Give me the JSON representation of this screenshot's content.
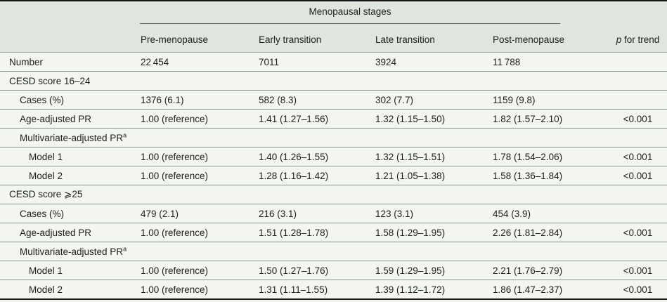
{
  "header": {
    "spanner": "Menopausal stages",
    "columns": [
      "Pre-menopause",
      "Early transition",
      "Late transition",
      "Post-menopause"
    ],
    "p_col_italic": "p",
    "p_col_rest": " for trend"
  },
  "rows": [
    {
      "label": "Number",
      "sup": "",
      "cells": [
        "22 454",
        "7011",
        "3924",
        "11 788",
        ""
      ]
    },
    {
      "label": "CESD score 16–24",
      "sup": "",
      "cells": [
        "",
        "",
        "",
        "",
        ""
      ]
    },
    {
      "label": "Cases (%)",
      "sup": "",
      "cells": [
        "1376 (6.1)",
        "582 (8.3)",
        "302 (7.7)",
        "1159 (9.8)",
        ""
      ]
    },
    {
      "label": "Age-adjusted PR",
      "sup": "",
      "cells": [
        "1.00 (reference)",
        "1.41 (1.27–1.56)",
        "1.32 (1.15–1.50)",
        "1.82 (1.57–2.10)",
        "<0.001"
      ]
    },
    {
      "label": "Multivariate-adjusted PR",
      "sup": "a",
      "cells": [
        "",
        "",
        "",
        "",
        ""
      ]
    },
    {
      "label": "Model 1",
      "sup": "",
      "cells": [
        "1.00 (reference)",
        "1.40 (1.26–1.55)",
        "1.32 (1.15–1.51)",
        "1.78 (1.54–2.06)",
        "<0.001"
      ]
    },
    {
      "label": "Model 2",
      "sup": "",
      "cells": [
        "1.00 (reference)",
        "1.28 (1.16–1.42)",
        "1.21 (1.05–1.38)",
        "1.58 (1.36–1.84)",
        "<0.001"
      ]
    },
    {
      "label": "CESD score ⩾25",
      "sup": "",
      "cells": [
        "",
        "",
        "",
        "",
        ""
      ]
    },
    {
      "label": "Cases (%)",
      "sup": "",
      "cells": [
        "479 (2.1)",
        "216 (3.1)",
        "123 (3.1)",
        "454 (3.9)",
        ""
      ]
    },
    {
      "label": "Age-adjusted PR",
      "sup": "",
      "cells": [
        "1.00 (reference)",
        "1.51 (1.28–1.78)",
        "1.58 (1.29–1.95)",
        "2.26 (1.81–2.84)",
        "<0.001"
      ]
    },
    {
      "label": "Multivariate-adjusted PR",
      "sup": "a",
      "cells": [
        "",
        "",
        "",
        "",
        ""
      ]
    },
    {
      "label": "Model 1",
      "sup": "",
      "cells": [
        "1.00 (reference)",
        "1.50 (1.27–1.76)",
        "1.59 (1.29–1.95)",
        "2.21 (1.76–2.79)",
        "<0.001"
      ]
    },
    {
      "label": "Model 2",
      "sup": "",
      "cells": [
        "1.00 (reference)",
        "1.31 (1.11–1.55)",
        "1.39 (1.12–1.72)",
        "1.86 (1.47–2.37)",
        "<0.001"
      ]
    }
  ],
  "colors": {
    "header_bg": "#dfe6de",
    "body_bg": "#f2f6ef",
    "row_rule": "#8b948c",
    "frame_rule": "#161616"
  }
}
